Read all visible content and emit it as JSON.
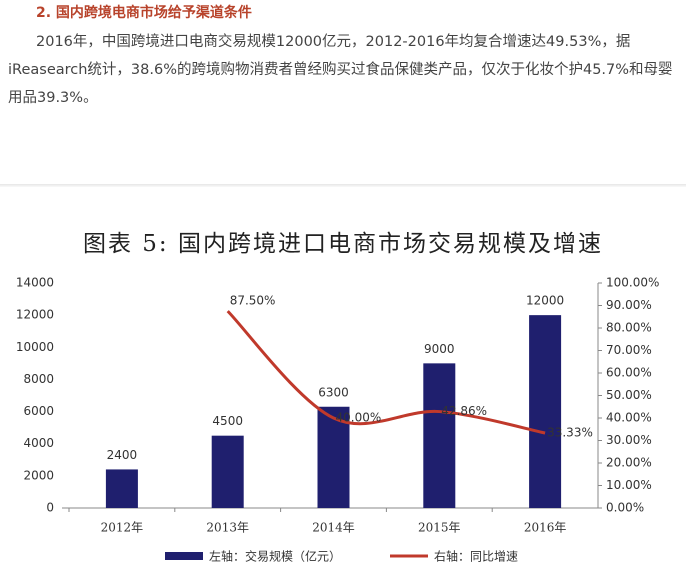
{
  "heading": "2. 国内跨境电商市场给予渠道条件",
  "paragraph": "2016年，中国跨境进口电商交易规模12000亿元，2012-2016年均复合增速达49.53%，据iReasearch统计，38.6%的跨境购物消费者曾经购买过食品保健类产品，仅次于化妆个护45.7%和母婴用品39.3%。",
  "chart_data": {
    "type": "bar_line",
    "title": "图表 5: 国内跨境进口电商市场交易规模及增速",
    "categories": [
      "2012年",
      "2013年",
      "2014年",
      "2015年",
      "2016年"
    ],
    "series": [
      {
        "name": "左轴：交易规模（亿元）",
        "color": "#1f1f6e",
        "type": "bar",
        "values": [
          2400,
          4500,
          6300,
          9000,
          12000
        ]
      },
      {
        "name": "右轴：同比增速",
        "color": "#c0392b",
        "type": "line",
        "axis": "y2",
        "values": [
          null,
          87.5,
          40,
          42.86,
          33.33
        ],
        "value_labels": [
          null,
          "87.50%",
          "40.00%",
          "42.86%",
          "33.33%"
        ]
      }
    ],
    "ylim": [
      0,
      14000
    ],
    "yticks": [
      0,
      2000,
      4000,
      6000,
      8000,
      10000,
      12000,
      14000
    ],
    "y2lim": [
      0,
      100
    ],
    "y2ticks": [
      {
        "value": 0,
        "label": "0.00%"
      },
      {
        "value": 10,
        "label": "10.00%"
      },
      {
        "value": 20,
        "label": "20.00%"
      },
      {
        "value": 30,
        "label": "30.00%"
      },
      {
        "value": 40,
        "label": "40.00%"
      },
      {
        "value": 50,
        "label": "50.00%"
      },
      {
        "value": 60,
        "label": "60.00%"
      },
      {
        "value": 70,
        "label": "70.00%"
      },
      {
        "value": 80,
        "label": "80.00%"
      },
      {
        "value": 90,
        "label": "90.00%"
      },
      {
        "value": 100,
        "label": "100.00%"
      }
    ],
    "legend": "bottom"
  }
}
